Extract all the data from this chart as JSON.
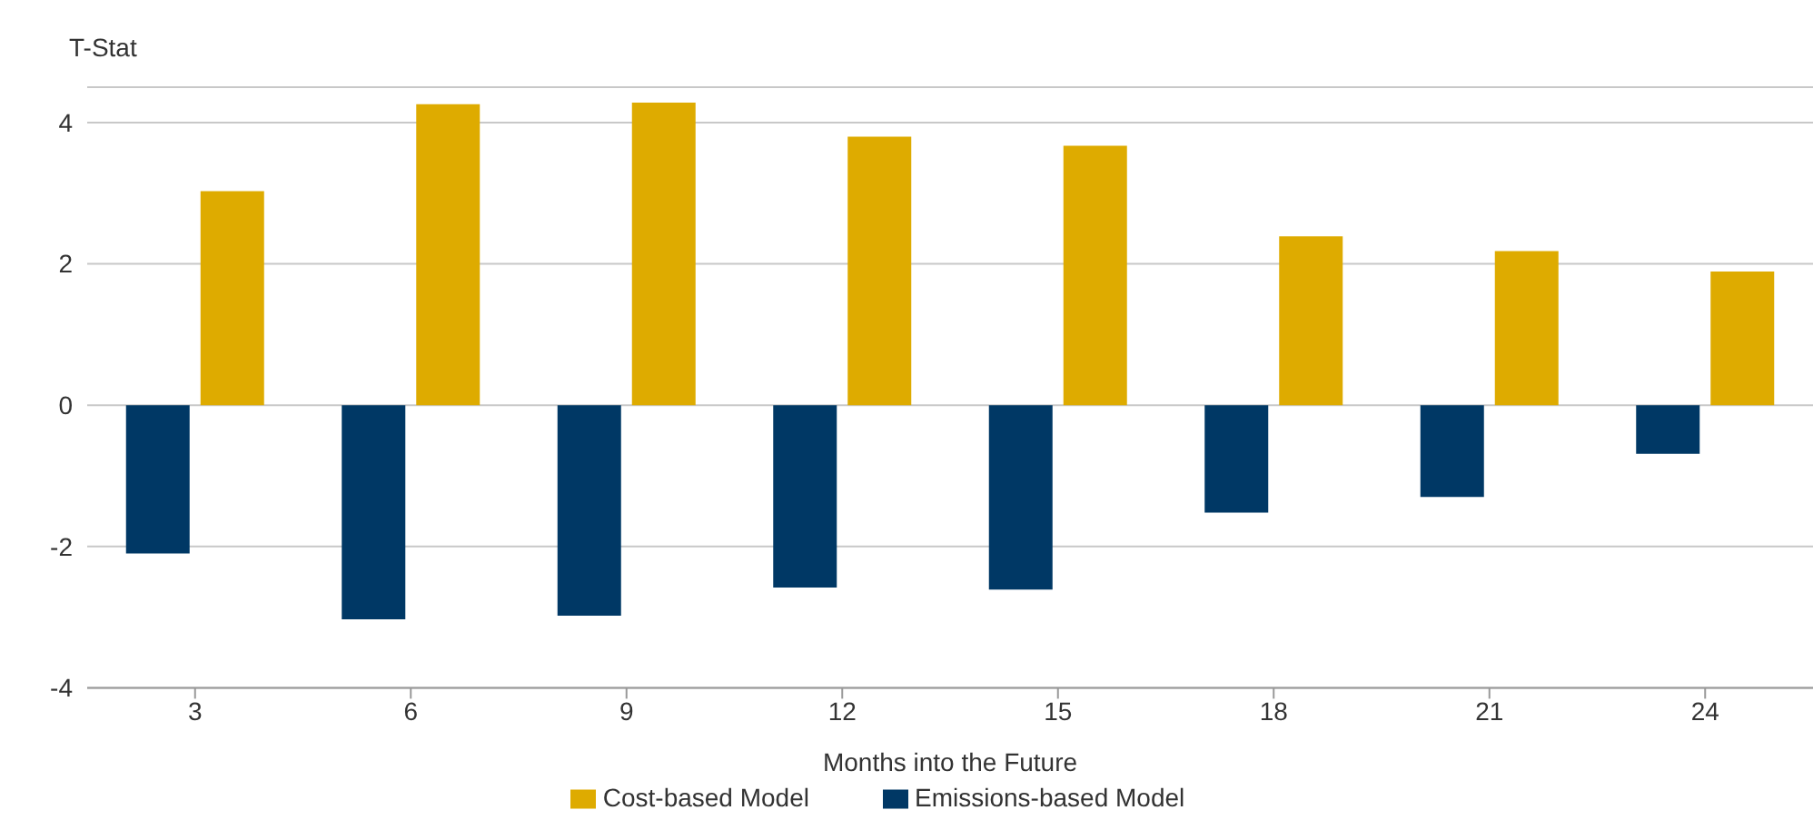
{
  "chart_data": {
    "type": "bar",
    "ylabel": "T-Stat",
    "xlabel": "Months into the Future",
    "categories": [
      "3",
      "6",
      "9",
      "12",
      "15",
      "18",
      "21",
      "24"
    ],
    "series": [
      {
        "name": "Emissions-based Model",
        "color": "#003865",
        "values": [
          -2.1,
          -3.03,
          -2.98,
          -2.58,
          -2.61,
          -1.52,
          -1.3,
          -0.69
        ]
      },
      {
        "name": "Cost-based Model",
        "color": "#deab00",
        "values": [
          3.03,
          4.26,
          4.28,
          3.8,
          3.67,
          2.39,
          2.18,
          1.89
        ]
      }
    ],
    "ylim": [
      -4,
      4.5
    ],
    "yticks": [
      -4,
      -2,
      0,
      2,
      4
    ],
    "grid": "y",
    "legend": "bottom"
  }
}
